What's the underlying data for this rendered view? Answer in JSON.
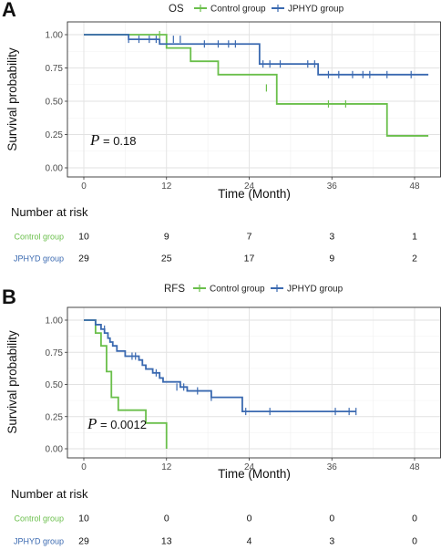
{
  "colors": {
    "control": "#6abf4b",
    "jphyd": "#3a69b0"
  },
  "chart_data": [
    {
      "panel_label": "A",
      "type": "line",
      "legend_title": "OS",
      "legend_position": "top",
      "series_labels": [
        "Control group",
        "JPHYD group"
      ],
      "xlabel": "Time (Month)",
      "ylabel": "Survival probability",
      "xlim": [
        0,
        50
      ],
      "ylim": [
        0,
        1
      ],
      "x_ticks": [
        0,
        12,
        24,
        36,
        48
      ],
      "y_ticks": [
        0.0,
        0.25,
        0.5,
        0.75,
        1.0
      ],
      "y_tick_labels": [
        "0.00",
        "0.25",
        "0.50",
        "0.75",
        "1.00"
      ],
      "x_tick_labels": [
        "0",
        "12",
        "24",
        "36",
        "48"
      ],
      "grid": true,
      "p_symbol": "P",
      "p_text": " = 0.18",
      "series": [
        {
          "name": "Control group",
          "color": "#6abf4b",
          "steps": [
            [
              0,
              1.0
            ],
            [
              12,
              0.9
            ],
            [
              15.5,
              0.8
            ],
            [
              19.5,
              0.7
            ],
            [
              28,
              0.48
            ],
            [
              44,
              0.24
            ],
            [
              50,
              0.24
            ]
          ],
          "censors": [
            [
              11,
              1.0
            ],
            [
              26.5,
              0.6
            ],
            [
              35.5,
              0.48
            ],
            [
              38,
              0.48
            ]
          ]
        },
        {
          "name": "JPHYD group",
          "color": "#3a69b0",
          "steps": [
            [
              0,
              1.0
            ],
            [
              6.5,
              0.965
            ],
            [
              11,
              0.93
            ],
            [
              25.5,
              0.78
            ],
            [
              34,
              0.7
            ],
            [
              50,
              0.7
            ]
          ],
          "censors": [
            [
              6.5,
              0.965
            ],
            [
              8,
              0.965
            ],
            [
              9.5,
              0.965
            ],
            [
              10.5,
              0.965
            ],
            [
              13,
              0.965
            ],
            [
              14,
              0.965
            ],
            [
              17.5,
              0.93
            ],
            [
              19.5,
              0.93
            ],
            [
              21,
              0.93
            ],
            [
              22,
              0.93
            ],
            [
              26,
              0.78
            ],
            [
              27,
              0.78
            ],
            [
              28.5,
              0.78
            ],
            [
              32.5,
              0.78
            ],
            [
              33.5,
              0.78
            ],
            [
              35.5,
              0.7
            ],
            [
              37,
              0.7
            ],
            [
              39,
              0.7
            ],
            [
              40.5,
              0.7
            ],
            [
              41.5,
              0.7
            ],
            [
              44,
              0.7
            ],
            [
              47.5,
              0.7
            ]
          ]
        }
      ],
      "risk_table": {
        "title": "Number at risk",
        "rows": [
          {
            "label": "Control group",
            "values": [
              "10",
              "9",
              "7",
              "3",
              "1"
            ]
          },
          {
            "label": "JPHYD group",
            "values": [
              "29",
              "25",
              "17",
              "9",
              "2"
            ]
          }
        ]
      }
    },
    {
      "panel_label": "B",
      "type": "line",
      "legend_title": "RFS",
      "legend_position": "top",
      "series_labels": [
        "Control group",
        "JPHYD group"
      ],
      "xlabel": "Time (Month)",
      "ylabel": "Survival probability",
      "xlim": [
        0,
        50
      ],
      "ylim": [
        0,
        1
      ],
      "x_ticks": [
        0,
        12,
        24,
        36,
        48
      ],
      "y_ticks": [
        0.0,
        0.25,
        0.5,
        0.75,
        1.0
      ],
      "y_tick_labels": [
        "0.00",
        "0.25",
        "0.50",
        "0.75",
        "1.00"
      ],
      "x_tick_labels": [
        "0",
        "12",
        "24",
        "36",
        "48"
      ],
      "grid": true,
      "p_symbol": "P",
      "p_text": " = 0.0012",
      "series": [
        {
          "name": "Control group",
          "color": "#6abf4b",
          "steps": [
            [
              0,
              1.0
            ],
            [
              1.7,
              0.9
            ],
            [
              2.5,
              0.8
            ],
            [
              3.3,
              0.6
            ],
            [
              4,
              0.4
            ],
            [
              5,
              0.3
            ],
            [
              9,
              0.2
            ],
            [
              12,
              0.0
            ]
          ],
          "censors": []
        },
        {
          "name": "JPHYD group",
          "color": "#3a69b0",
          "steps": [
            [
              0,
              1.0
            ],
            [
              1.7,
              0.965
            ],
            [
              2.5,
              0.93
            ],
            [
              3,
              0.9
            ],
            [
              3.5,
              0.86
            ],
            [
              3.8,
              0.83
            ],
            [
              4.2,
              0.8
            ],
            [
              4.8,
              0.76
            ],
            [
              6,
              0.72
            ],
            [
              8,
              0.69
            ],
            [
              8.5,
              0.65
            ],
            [
              9,
              0.62
            ],
            [
              10,
              0.59
            ],
            [
              11,
              0.55
            ],
            [
              11.5,
              0.52
            ],
            [
              14,
              0.48
            ],
            [
              15,
              0.45
            ],
            [
              18.5,
              0.4
            ],
            [
              23,
              0.29
            ],
            [
              39.5,
              0.29
            ]
          ],
          "censors": [
            [
              3,
              0.93
            ],
            [
              7,
              0.72
            ],
            [
              7.5,
              0.72
            ],
            [
              10.5,
              0.59
            ],
            [
              13.5,
              0.48
            ],
            [
              14.5,
              0.48
            ],
            [
              16.5,
              0.45
            ],
            [
              18.5,
              0.4
            ],
            [
              23.5,
              0.29
            ],
            [
              27,
              0.29
            ],
            [
              36.5,
              0.29
            ],
            [
              38.5,
              0.29
            ],
            [
              39.5,
              0.29
            ]
          ]
        }
      ],
      "risk_table": {
        "title": "Number at risk",
        "rows": [
          {
            "label": "Control group",
            "values": [
              "10",
              "0",
              "0",
              "0",
              "0"
            ]
          },
          {
            "label": "JPHYD group",
            "values": [
              "29",
              "13",
              "4",
              "3",
              "0"
            ]
          }
        ]
      }
    }
  ]
}
